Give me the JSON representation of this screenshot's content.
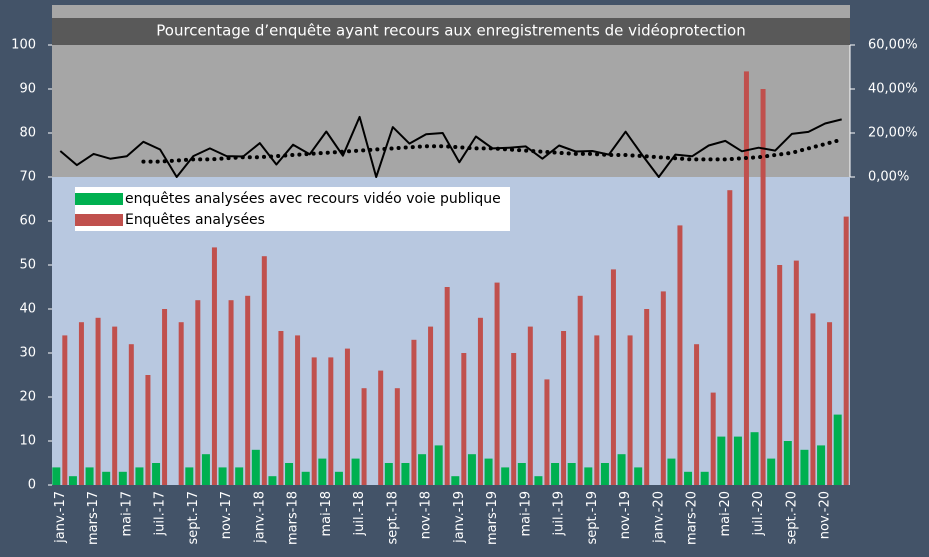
{
  "chart_data": {
    "type": "bar",
    "title": "Pourcentage d’enquête ayant recours aux enregistrements de vidéoprotection",
    "categories": [
      "janv.-17",
      null,
      "mars-17",
      null,
      "mai-17",
      null,
      "juil.-17",
      null,
      "sept.-17",
      null,
      "nov.-17",
      null,
      "janv.-18",
      null,
      "mars-18",
      null,
      "mai-18",
      null,
      "juil.-18",
      null,
      "sept.-18",
      null,
      "nov.-18",
      null,
      "janv.-19",
      null,
      "mars-19",
      null,
      "mai-19",
      null,
      "juil.-19",
      null,
      "sept.-19",
      null,
      "nov.-19",
      null,
      "janv.-20",
      null,
      "mars-20",
      null,
      "mai-20",
      null,
      "juil.-20",
      null,
      "sept.-20",
      null,
      "nov.-20",
      null
    ],
    "series": [
      {
        "type": "bar",
        "name": "enquêtes analysées avec recours vidéo voie publique",
        "color": "#00b050",
        "values": [
          4,
          2,
          4,
          3,
          3,
          4,
          5,
          0,
          4,
          7,
          4,
          4,
          8,
          2,
          5,
          3,
          6,
          3,
          6,
          0,
          5,
          5,
          7,
          9,
          2,
          7,
          6,
          4,
          5,
          2,
          5,
          5,
          4,
          5,
          7,
          4,
          0,
          6,
          3,
          3,
          11,
          11,
          12,
          6,
          10,
          8,
          9,
          16
        ]
      },
      {
        "type": "bar",
        "name": "Enquêtes analysées",
        "color": "#c0504d",
        "values": [
          34,
          37,
          38,
          36,
          32,
          25,
          40,
          37,
          42,
          54,
          42,
          43,
          52,
          35,
          34,
          29,
          29,
          31,
          22,
          26,
          22,
          33,
          36,
          45,
          30,
          38,
          46,
          30,
          36,
          24,
          35,
          43,
          34,
          49,
          34,
          40,
          44,
          59,
          32,
          21,
          67,
          94,
          90,
          50,
          51,
          39,
          37,
          61
        ]
      },
      {
        "type": "line",
        "axis": "y2",
        "color": "#000000",
        "line_style": "solid",
        "values": [
          11.8,
          5.4,
          10.5,
          8.3,
          9.4,
          16,
          12.5,
          0,
          9.5,
          13,
          9.5,
          9.3,
          15.4,
          5.7,
          14.7,
          10.3,
          20.7,
          9.7,
          27.3,
          0,
          22.7,
          15.2,
          19.4,
          20,
          6.7,
          18.4,
          13,
          13.3,
          13.9,
          8.3,
          14.3,
          11.6,
          11.8,
          10.2,
          20.6,
          10,
          0,
          10.2,
          9.4,
          14.3,
          16.4,
          11.7,
          13.3,
          12,
          19.6,
          20.5,
          24.3,
          26.2
        ]
      },
      {
        "type": "line",
        "axis": "y2",
        "color": "#000000",
        "line_style": "dotted",
        "values": [
          null,
          null,
          null,
          null,
          null,
          7,
          7,
          7.5,
          8,
          8,
          8.5,
          9,
          9,
          9.5,
          10,
          10.5,
          11,
          11.5,
          12,
          12.5,
          13,
          13.5,
          14,
          14,
          13.5,
          13,
          13,
          12.5,
          12,
          11.5,
          11,
          10.5,
          10.5,
          10,
          10,
          9.5,
          9,
          8.5,
          8,
          8,
          8,
          8.5,
          9,
          10,
          11,
          13,
          15,
          17
        ]
      }
    ],
    "ylim": [
      0,
      100
    ],
    "yticks": [
      0,
      10,
      20,
      30,
      40,
      50,
      60,
      70,
      80,
      90,
      100
    ],
    "y2lim": [
      -140,
      60
    ],
    "y2ticks": [
      {
        "value": 0,
        "label": "0,00%"
      },
      {
        "value": 20,
        "label": "20,00%"
      },
      {
        "value": 40,
        "label": "40,00%"
      },
      {
        "value": 60,
        "label": "60,00%"
      }
    ],
    "legend": "upper left"
  }
}
